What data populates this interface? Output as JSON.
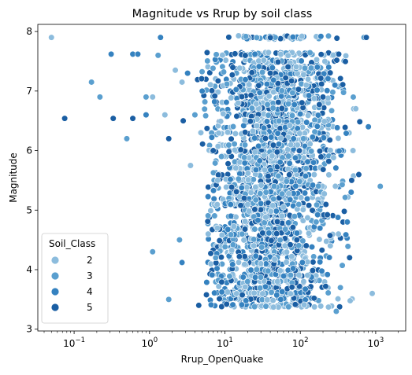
{
  "chart_data": {
    "type": "scatter",
    "title": "Magnitude vs Rrup by soil class",
    "xlabel": "Rrup_OpenQuake",
    "ylabel": "Magnitude",
    "xscale": "log",
    "xlim": [
      0.033,
      2500
    ],
    "ylim": [
      2.97,
      8.12
    ],
    "xticks": [
      {
        "value": 0.1,
        "label": "10⁻¹",
        "base": "10",
        "exp": "−1"
      },
      {
        "value": 1,
        "label": "10⁰",
        "base": "10",
        "exp": "0"
      },
      {
        "value": 10,
        "label": "10¹",
        "base": "10",
        "exp": "1"
      },
      {
        "value": 100,
        "label": "10²",
        "base": "10",
        "exp": "2"
      },
      {
        "value": 1000,
        "label": "10³",
        "base": "10",
        "exp": "3"
      }
    ],
    "yticks": [
      {
        "value": 3,
        "label": "3"
      },
      {
        "value": 4,
        "label": "4"
      },
      {
        "value": 5,
        "label": "5"
      },
      {
        "value": 6,
        "label": "6"
      },
      {
        "value": 7,
        "label": "7"
      },
      {
        "value": 8,
        "label": "8"
      }
    ],
    "grid": false,
    "legend": {
      "title": "Soil_Class",
      "position": "lower-left",
      "entries": [
        {
          "label": "2",
          "color": "#8cbcdd"
        },
        {
          "label": "3",
          "color": "#5a9fcf"
        },
        {
          "label": "4",
          "color": "#3582c0"
        },
        {
          "label": "5",
          "color": "#1a5ea3"
        }
      ]
    },
    "series": [
      {
        "name": "2",
        "color": "#8cbcdd",
        "points": [
          [
            0.05,
            7.9
          ],
          [
            1.1,
            6.9
          ],
          [
            1.6,
            6.6
          ],
          [
            2.2,
            7.35
          ],
          [
            2.7,
            7.15
          ],
          [
            3.5,
            5.75
          ],
          [
            4.8,
            6.3
          ],
          [
            6,
            4.6
          ],
          [
            8,
            5.5
          ],
          [
            15,
            6.8
          ],
          [
            30,
            4.1
          ],
          [
            60,
            5.05
          ],
          [
            120,
            7.1
          ],
          [
            250,
            4.4
          ],
          [
            500,
            6.0
          ],
          [
            900,
            3.6
          ]
        ]
      },
      {
        "name": "3",
        "color": "#5a9fcf",
        "points": [
          [
            0.17,
            7.15
          ],
          [
            0.22,
            6.9
          ],
          [
            0.5,
            6.2
          ],
          [
            0.9,
            6.9
          ],
          [
            1.3,
            7.6
          ],
          [
            2.5,
            4.5
          ],
          [
            1.1,
            4.3
          ],
          [
            1.8,
            3.5
          ],
          [
            4,
            6.6
          ],
          [
            9,
            5.9
          ],
          [
            20,
            3.8
          ],
          [
            45,
            5.4
          ],
          [
            110,
            6.2
          ],
          [
            300,
            3.3
          ],
          [
            700,
            7.9
          ],
          [
            1150,
            5.4
          ]
        ]
      },
      {
        "name": "4",
        "color": "#3582c0",
        "points": [
          [
            0.31,
            7.62
          ],
          [
            0.6,
            7.62
          ],
          [
            0.7,
            7.62
          ],
          [
            0.9,
            6.6
          ],
          [
            1.4,
            7.9
          ],
          [
            2.7,
            4.12
          ],
          [
            3.2,
            7.3
          ],
          [
            5,
            7.0
          ],
          [
            12,
            4.9
          ],
          [
            25,
            7.62
          ],
          [
            55,
            3.5
          ],
          [
            150,
            5.8
          ],
          [
            420,
            4.8
          ],
          [
            800,
            6.4
          ]
        ]
      },
      {
        "name": "5",
        "color": "#1a5ea3",
        "points": [
          [
            0.075,
            6.54
          ],
          [
            0.33,
            6.54
          ],
          [
            0.6,
            6.54
          ],
          [
            1.8,
            6.2
          ],
          [
            2.8,
            6.5
          ],
          [
            4.5,
            3.4
          ],
          [
            7,
            6.0
          ],
          [
            18,
            5.2
          ],
          [
            40,
            7.3
          ],
          [
            90,
            4.5
          ],
          [
            200,
            6.9
          ],
          [
            480,
            5.5
          ],
          [
            750,
            7.9
          ]
        ]
      }
    ]
  }
}
